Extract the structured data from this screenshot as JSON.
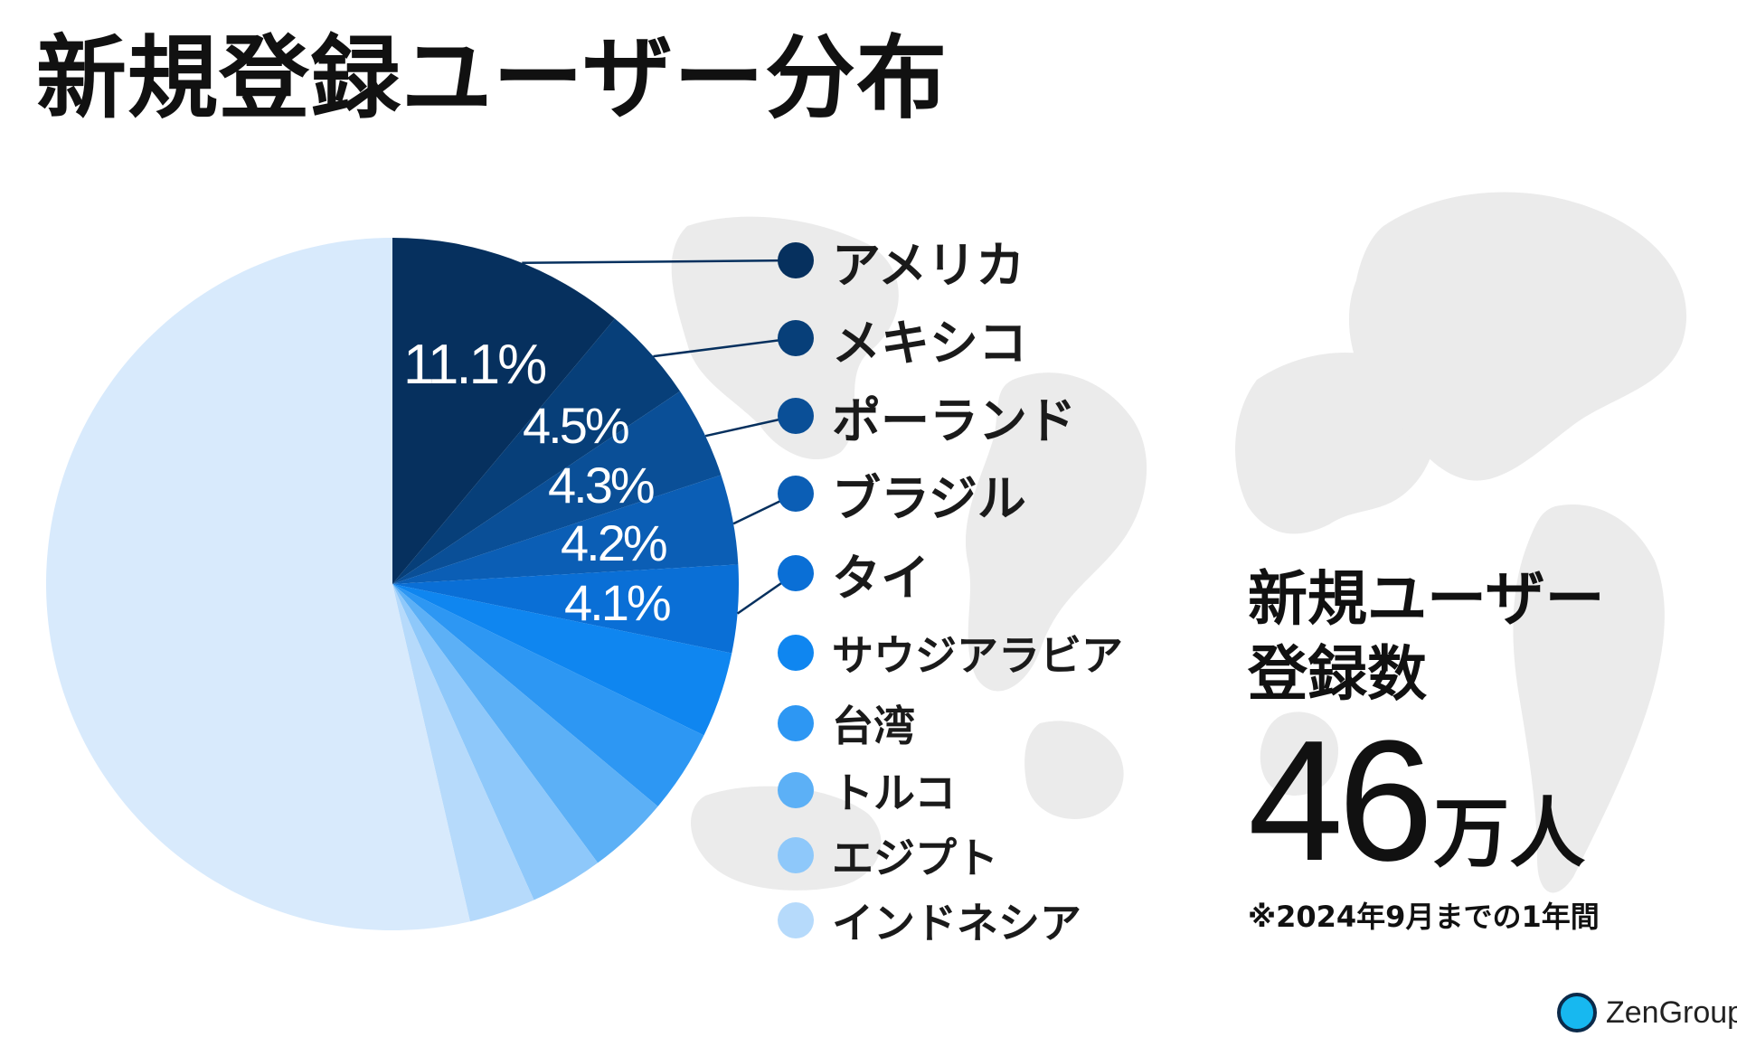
{
  "title": "新規登録ユーザー分布",
  "colors": {
    "slices": [
      "#06305e",
      "#073f79",
      "#0a4f97",
      "#0b5eb5",
      "#0a6fd6",
      "#0f86f0",
      "#2d97f3",
      "#5cb0f6",
      "#8ec8fa",
      "#b6dafb"
    ],
    "rest": "#d8eafc",
    "map": "#ebebeb",
    "label_text": "#ffffff"
  },
  "chart_data": {
    "type": "pie",
    "title": "新規登録ユーザー分布",
    "start": "12 o'clock",
    "direction": "clockwise",
    "slices": [
      {
        "label": "アメリカ",
        "value": 11.1,
        "display": "11.1%"
      },
      {
        "label": "メキシコ",
        "value": 4.5,
        "display": "4.5%"
      },
      {
        "label": "ポーランド",
        "value": 4.3,
        "display": "4.3%"
      },
      {
        "label": "ブラジル",
        "value": 4.2,
        "display": "4.2%"
      },
      {
        "label": "タイ",
        "value": 4.1,
        "display": "4.1%"
      },
      {
        "label": "サウジアラビア",
        "value": 4.0,
        "display": ""
      },
      {
        "label": "台湾",
        "value": 3.9,
        "display": ""
      },
      {
        "label": "トルコ",
        "value": 3.8,
        "display": ""
      },
      {
        "label": "エジプト",
        "value": 3.4,
        "display": ""
      },
      {
        "label": "インドネシア",
        "value": 3.1,
        "display": ""
      }
    ],
    "others_value": 53.6,
    "legend_position": "right"
  },
  "summary": {
    "label_line1": "新規ユーザー",
    "label_line2": "登録数",
    "value": "46",
    "unit": "万人",
    "note": "※2024年9月までの1年間"
  },
  "brand": {
    "name": "ZenGroup"
  }
}
